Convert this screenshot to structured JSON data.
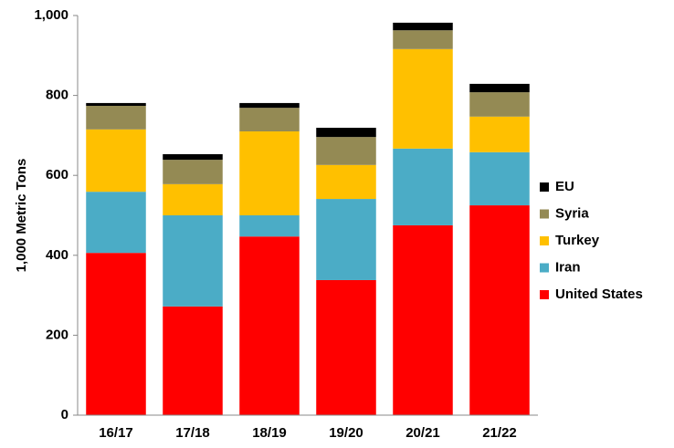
{
  "chart_data": {
    "type": "stacked_bar",
    "y_label": "1,000 Metric Tons",
    "categories": [
      "16/17",
      "17/18",
      "18/19",
      "19/20",
      "20/21",
      "21/22"
    ],
    "series": [
      {
        "name": "United States",
        "color": "#ff0000",
        "values": [
          406,
          272,
          447,
          338,
          475,
          525
        ]
      },
      {
        "name": "Iran",
        "color": "#4bacc6",
        "values": [
          153,
          228,
          53,
          203,
          192,
          133
        ]
      },
      {
        "name": "Turkey",
        "color": "#ffc000",
        "values": [
          156,
          78,
          210,
          85,
          249,
          89
        ]
      },
      {
        "name": "Syria",
        "color": "#948a54",
        "values": [
          59,
          61,
          59,
          70,
          47,
          61
        ]
      },
      {
        "name": "EU",
        "color": "#000000",
        "values": [
          7,
          14,
          12,
          23,
          19,
          21
        ]
      }
    ],
    "ylim": [
      0,
      1000
    ],
    "yticks": [
      0,
      200,
      400,
      600,
      800,
      {
        "value": 1000,
        "label": "1,000"
      }
    ],
    "legend": "right"
  }
}
